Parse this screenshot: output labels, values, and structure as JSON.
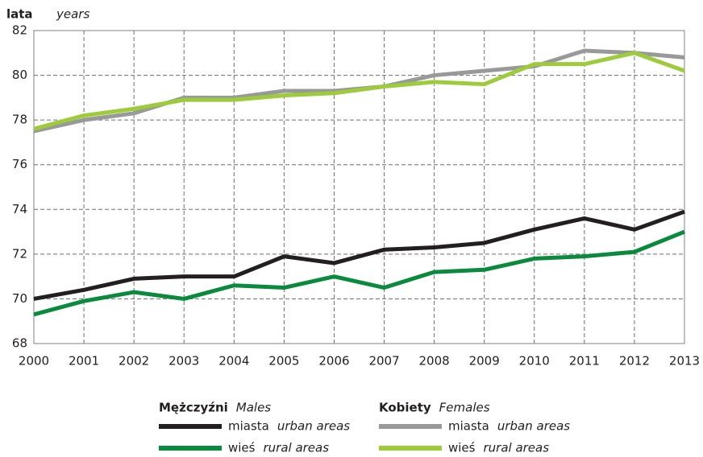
{
  "chart_data": {
    "type": "line",
    "y_label": "lata",
    "y_label_en": "years",
    "x": [
      2000,
      2001,
      2002,
      2003,
      2004,
      2005,
      2006,
      2007,
      2008,
      2009,
      2010,
      2011,
      2012,
      2013
    ],
    "xlim": [
      2000,
      2013
    ],
    "xticks": [
      2000,
      2001,
      2002,
      2003,
      2004,
      2005,
      2006,
      2007,
      2008,
      2009,
      2010,
      2011,
      2012,
      2013
    ],
    "ylim": [
      68,
      82
    ],
    "yticks": [
      68,
      70,
      72,
      74,
      76,
      78,
      80,
      82
    ],
    "grid": true,
    "legend_groups": [
      {
        "title": "Mężczyźni",
        "title_en": "Males"
      },
      {
        "title": "Kobiety",
        "title_en": "Females"
      }
    ],
    "series": [
      {
        "name": "miasta",
        "name_en": "urban areas",
        "group": 0,
        "color": "#231f20",
        "values": [
          70.0,
          70.4,
          70.9,
          71.0,
          71.0,
          71.9,
          71.6,
          72.2,
          72.3,
          72.5,
          73.1,
          73.6,
          73.1,
          73.9
        ]
      },
      {
        "name": "wieś",
        "name_en": "rural areas",
        "group": 0,
        "color": "#0a8a3c",
        "values": [
          69.3,
          69.9,
          70.3,
          70.0,
          70.6,
          70.5,
          71.0,
          70.5,
          71.2,
          71.3,
          71.8,
          71.9,
          72.1,
          73.0
        ]
      },
      {
        "name": "miasta",
        "name_en": "urban areas",
        "group": 1,
        "color": "#999999",
        "values": [
          77.5,
          78.0,
          78.3,
          79.0,
          79.0,
          79.3,
          79.3,
          79.5,
          80.0,
          80.2,
          80.4,
          81.1,
          81.0,
          80.8
        ]
      },
      {
        "name": "wieś",
        "name_en": "rural areas",
        "group": 1,
        "color": "#9ecb3b",
        "values": [
          77.6,
          78.2,
          78.5,
          78.9,
          78.9,
          79.1,
          79.2,
          79.5,
          79.7,
          79.6,
          80.5,
          80.5,
          81.0,
          80.2
        ]
      }
    ]
  }
}
